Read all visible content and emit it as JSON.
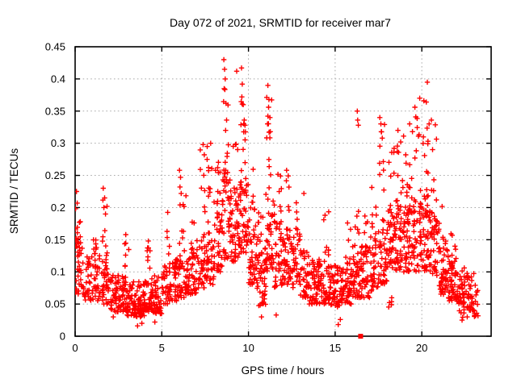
{
  "chart_data": {
    "type": "scatter",
    "title": "Day 072 of 2021, SRMTID for receiver mar7",
    "xlabel": "GPS time / hours",
    "ylabel": "SRMTID / TECUs",
    "xlim": [
      0,
      24
    ],
    "ylim": [
      0,
      0.45
    ],
    "xticks": [
      0,
      5,
      10,
      15,
      20
    ],
    "yticks": [
      0,
      0.05,
      0.1,
      0.15,
      0.2,
      0.25,
      0.3,
      0.35,
      0.4,
      0.45
    ],
    "grid": {
      "show": true,
      "style": "dotted",
      "color": "#a9a9a9",
      "x_at": [
        5,
        10,
        15,
        20
      ],
      "y_at": [
        0.05,
        0.1,
        0.15,
        0.2,
        0.25,
        0.3,
        0.35,
        0.4
      ]
    },
    "legend": "none",
    "border_color": "#000000",
    "marker": {
      "shape": "plus",
      "color": "#ff0000",
      "size": 6.4
    },
    "seed": 20210312,
    "special_points": [
      {
        "x": 16.47,
        "y": 0,
        "marker": "filled-square",
        "color": "#ff0000",
        "size": 6
      }
    ],
    "outlier_points": [
      [
        0.08,
        0.225
      ],
      [
        0.12,
        0.207
      ],
      [
        0.3,
        0.178
      ],
      [
        1.62,
        0.23
      ],
      [
        1.7,
        0.215
      ],
      [
        1.66,
        0.2
      ],
      [
        1.75,
        0.19
      ],
      [
        2.2,
        0.03
      ],
      [
        2.92,
        0.158
      ],
      [
        3.6,
        0.016
      ],
      [
        3.85,
        0.02
      ],
      [
        4.22,
        0.148
      ],
      [
        4.6,
        0.022
      ],
      [
        6.02,
        0.258
      ],
      [
        6.08,
        0.247
      ],
      [
        6.05,
        0.232
      ],
      [
        6.12,
        0.222
      ],
      [
        7.38,
        0.298
      ],
      [
        7.45,
        0.282
      ],
      [
        7.62,
        0.295
      ],
      [
        7.82,
        0.3
      ],
      [
        8.58,
        0.43
      ],
      [
        8.62,
        0.415
      ],
      [
        8.66,
        0.4
      ],
      [
        8.6,
        0.385
      ],
      [
        8.7,
        0.362
      ],
      [
        8.74,
        0.336
      ],
      [
        8.68,
        0.32
      ],
      [
        9.32,
        0.412
      ],
      [
        9.6,
        0.417
      ],
      [
        9.64,
        0.392
      ],
      [
        9.62,
        0.372
      ],
      [
        9.7,
        0.36
      ],
      [
        9.76,
        0.336
      ],
      [
        9.8,
        0.328
      ],
      [
        10.75,
        0.03
      ],
      [
        11.12,
        0.39
      ],
      [
        11.18,
        0.368
      ],
      [
        11.16,
        0.356
      ],
      [
        11.24,
        0.34
      ],
      [
        11.1,
        0.33
      ],
      [
        11.26,
        0.318
      ],
      [
        11.6,
        0.033
      ],
      [
        12.2,
        0.258
      ],
      [
        13.2,
        0.222
      ],
      [
        14.42,
        0.188
      ],
      [
        15.18,
        0.018
      ],
      [
        15.3,
        0.026
      ],
      [
        16.28,
        0.35
      ],
      [
        16.3,
        0.336
      ],
      [
        16.34,
        0.328
      ],
      [
        17.58,
        0.34
      ],
      [
        17.64,
        0.33
      ],
      [
        17.66,
        0.318
      ],
      [
        17.72,
        0.308
      ],
      [
        18.62,
        0.32
      ],
      [
        18.78,
        0.302
      ],
      [
        19.3,
        0.33
      ],
      [
        19.46,
        0.318
      ],
      [
        19.6,
        0.356
      ],
      [
        19.88,
        0.37
      ],
      [
        20.32,
        0.395
      ],
      [
        20.12,
        0.366
      ],
      [
        20.26,
        0.364
      ],
      [
        20.42,
        0.33
      ],
      [
        20.55,
        0.336
      ],
      [
        20.62,
        0.29
      ],
      [
        22.32,
        0.025
      ],
      [
        22.62,
        0.03
      ],
      [
        23.1,
        0.032
      ]
    ],
    "clusters": [
      [
        0.0,
        0.5,
        36,
        0.065,
        0.155,
        1.4
      ],
      [
        0.0,
        0.3,
        9,
        0.15,
        0.212,
        1.2
      ],
      [
        0.5,
        1.0,
        30,
        0.055,
        0.125,
        1.4
      ],
      [
        1.0,
        1.5,
        32,
        0.055,
        0.13,
        1.4
      ],
      [
        1.0,
        1.3,
        6,
        0.13,
        0.175,
        1.2
      ],
      [
        1.5,
        2.0,
        32,
        0.05,
        0.115,
        1.4
      ],
      [
        1.55,
        1.85,
        10,
        0.115,
        0.235,
        1.25
      ],
      [
        2.0,
        2.5,
        40,
        0.038,
        0.095,
        1.4
      ],
      [
        2.5,
        3.0,
        44,
        0.038,
        0.095,
        1.4
      ],
      [
        2.8,
        3.1,
        6,
        0.095,
        0.155,
        1.2
      ],
      [
        3.0,
        3.5,
        48,
        0.032,
        0.085,
        1.4
      ],
      [
        3.5,
        4.0,
        48,
        0.03,
        0.085,
        1.4
      ],
      [
        4.0,
        4.5,
        44,
        0.038,
        0.09,
        1.4
      ],
      [
        4.15,
        4.35,
        7,
        0.09,
        0.148,
        1.2
      ],
      [
        4.5,
        5.0,
        42,
        0.035,
        0.095,
        1.4
      ],
      [
        5.0,
        5.5,
        36,
        0.05,
        0.11,
        1.4
      ],
      [
        5.2,
        5.5,
        6,
        0.11,
        0.195,
        1.2
      ],
      [
        5.5,
        6.0,
        36,
        0.055,
        0.12,
        1.4
      ],
      [
        6.0,
        6.5,
        36,
        0.06,
        0.125,
        1.4
      ],
      [
        6.0,
        6.4,
        9,
        0.125,
        0.26,
        1.25
      ],
      [
        6.5,
        7.0,
        36,
        0.065,
        0.13,
        1.4
      ],
      [
        6.6,
        6.9,
        5,
        0.13,
        0.185,
        1.2
      ],
      [
        7.0,
        7.5,
        36,
        0.075,
        0.155,
        1.4
      ],
      [
        7.2,
        7.5,
        8,
        0.155,
        0.29,
        1.3
      ],
      [
        7.5,
        8.0,
        36,
        0.08,
        0.165,
        1.4
      ],
      [
        7.55,
        8.0,
        9,
        0.165,
        0.295,
        1.3
      ],
      [
        8.0,
        8.5,
        40,
        0.1,
        0.21,
        1.35
      ],
      [
        8.1,
        8.5,
        8,
        0.21,
        0.31,
        1.2
      ],
      [
        8.5,
        9.0,
        40,
        0.12,
        0.245,
        1.3
      ],
      [
        8.55,
        8.85,
        12,
        0.245,
        0.42,
        1.25
      ],
      [
        9.0,
        9.5,
        40,
        0.115,
        0.22,
        1.3
      ],
      [
        9.1,
        9.45,
        7,
        0.22,
        0.31,
        1.2
      ],
      [
        9.5,
        10.0,
        46,
        0.13,
        0.24,
        1.25
      ],
      [
        9.55,
        9.85,
        11,
        0.24,
        0.4,
        1.25
      ],
      [
        10.0,
        10.5,
        42,
        0.08,
        0.185,
        1.35
      ],
      [
        10.1,
        10.45,
        7,
        0.185,
        0.27,
        1.2
      ],
      [
        10.5,
        11.0,
        46,
        0.045,
        0.155,
        1.35
      ],
      [
        10.55,
        10.9,
        6,
        0.155,
        0.24,
        1.2
      ],
      [
        11.0,
        11.5,
        42,
        0.1,
        0.225,
        1.3
      ],
      [
        11.05,
        11.35,
        11,
        0.225,
        0.375,
        1.25
      ],
      [
        11.5,
        12.0,
        40,
        0.075,
        0.18,
        1.35
      ],
      [
        11.55,
        11.9,
        6,
        0.18,
        0.255,
        1.2
      ],
      [
        12.0,
        12.5,
        38,
        0.08,
        0.17,
        1.35
      ],
      [
        12.1,
        12.4,
        5,
        0.17,
        0.25,
        1.2
      ],
      [
        12.5,
        13.0,
        38,
        0.075,
        0.16,
        1.35
      ],
      [
        12.6,
        12.95,
        5,
        0.16,
        0.215,
        1.2
      ],
      [
        13.0,
        13.5,
        38,
        0.06,
        0.14,
        1.4
      ],
      [
        13.5,
        14.0,
        40,
        0.05,
        0.12,
        1.4
      ],
      [
        14.0,
        14.5,
        40,
        0.05,
        0.12,
        1.4
      ],
      [
        14.3,
        14.65,
        7,
        0.12,
        0.195,
        1.25
      ],
      [
        14.5,
        15.0,
        40,
        0.048,
        0.11,
        1.4
      ],
      [
        15.0,
        15.5,
        40,
        0.045,
        0.11,
        1.4
      ],
      [
        15.5,
        16.0,
        40,
        0.05,
        0.12,
        1.4
      ],
      [
        15.6,
        15.9,
        5,
        0.12,
        0.19,
        1.2
      ],
      [
        16.0,
        16.5,
        40,
        0.06,
        0.14,
        1.4
      ],
      [
        16.1,
        16.45,
        6,
        0.14,
        0.215,
        1.2
      ],
      [
        16.5,
        17.0,
        36,
        0.06,
        0.14,
        1.4
      ],
      [
        16.6,
        16.95,
        5,
        0.14,
        0.2,
        1.2
      ],
      [
        17.0,
        17.5,
        38,
        0.07,
        0.16,
        1.4
      ],
      [
        17.1,
        17.45,
        6,
        0.16,
        0.235,
        1.2
      ],
      [
        17.5,
        18.0,
        40,
        0.08,
        0.18,
        1.35
      ],
      [
        17.55,
        17.85,
        9,
        0.18,
        0.33,
        1.25
      ],
      [
        18.0,
        18.5,
        40,
        0.1,
        0.2,
        1.3
      ],
      [
        18.1,
        18.45,
        7,
        0.2,
        0.3,
        1.2
      ],
      [
        18.05,
        18.35,
        5,
        0.045,
        0.075,
        1.2
      ],
      [
        18.5,
        19.0,
        44,
        0.1,
        0.22,
        1.3
      ],
      [
        18.55,
        18.95,
        8,
        0.22,
        0.315,
        1.2
      ],
      [
        19.0,
        19.5,
        44,
        0.1,
        0.22,
        1.3
      ],
      [
        19.05,
        19.45,
        8,
        0.22,
        0.325,
        1.2
      ],
      [
        19.5,
        20.0,
        44,
        0.1,
        0.22,
        1.3
      ],
      [
        19.55,
        19.95,
        8,
        0.22,
        0.355,
        1.25
      ],
      [
        20.0,
        20.5,
        44,
        0.1,
        0.22,
        1.3
      ],
      [
        20.05,
        20.45,
        9,
        0.22,
        0.37,
        1.25
      ],
      [
        20.5,
        21.0,
        40,
        0.09,
        0.2,
        1.35
      ],
      [
        20.55,
        20.9,
        6,
        0.2,
        0.33,
        1.25
      ],
      [
        21.0,
        21.5,
        46,
        0.065,
        0.14,
        1.4
      ],
      [
        21.1,
        21.45,
        5,
        0.14,
        0.205,
        1.2
      ],
      [
        21.5,
        22.0,
        48,
        0.055,
        0.13,
        1.4
      ],
      [
        21.6,
        21.95,
        4,
        0.13,
        0.17,
        1.2
      ],
      [
        22.0,
        22.5,
        42,
        0.05,
        0.11,
        1.4
      ],
      [
        22.1,
        22.45,
        6,
        0.028,
        0.05,
        1.2
      ],
      [
        22.5,
        23.0,
        34,
        0.04,
        0.1,
        1.4
      ],
      [
        23.0,
        23.25,
        12,
        0.03,
        0.08,
        1.3
      ]
    ]
  }
}
